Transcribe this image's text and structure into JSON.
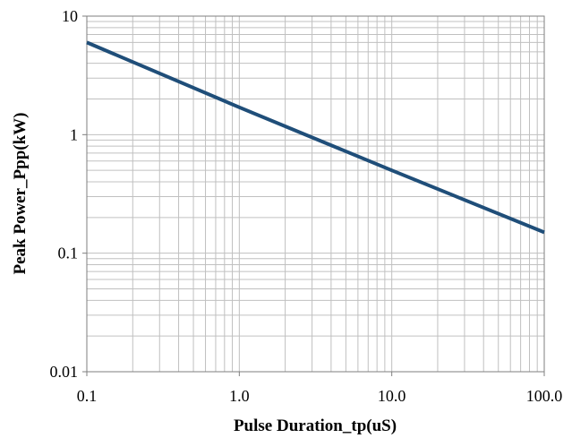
{
  "chart_data": {
    "type": "line",
    "xlabel": "Pulse Duration_tp(uS)",
    "ylabel": "Peak  Power_Ppp(kW)",
    "x_scale": "log",
    "y_scale": "log",
    "xlim": [
      0.1,
      100
    ],
    "ylim": [
      0.01,
      10
    ],
    "grid": true,
    "x_ticks": [
      {
        "value": 0.1,
        "label": "0.1"
      },
      {
        "value": 1,
        "label": "1.0"
      },
      {
        "value": 10,
        "label": "10.0"
      },
      {
        "value": 100,
        "label": "100.0"
      }
    ],
    "y_ticks": [
      {
        "value": 0.01,
        "label": "0.01"
      },
      {
        "value": 0.1,
        "label": "0.1"
      },
      {
        "value": 1,
        "label": "1"
      },
      {
        "value": 10,
        "label": "10"
      }
    ],
    "series": [
      {
        "color": "#1f4e79",
        "x": [
          0.1,
          1,
          10,
          100
        ],
        "y": [
          6.0,
          1.7,
          0.5,
          0.15
        ]
      }
    ]
  }
}
